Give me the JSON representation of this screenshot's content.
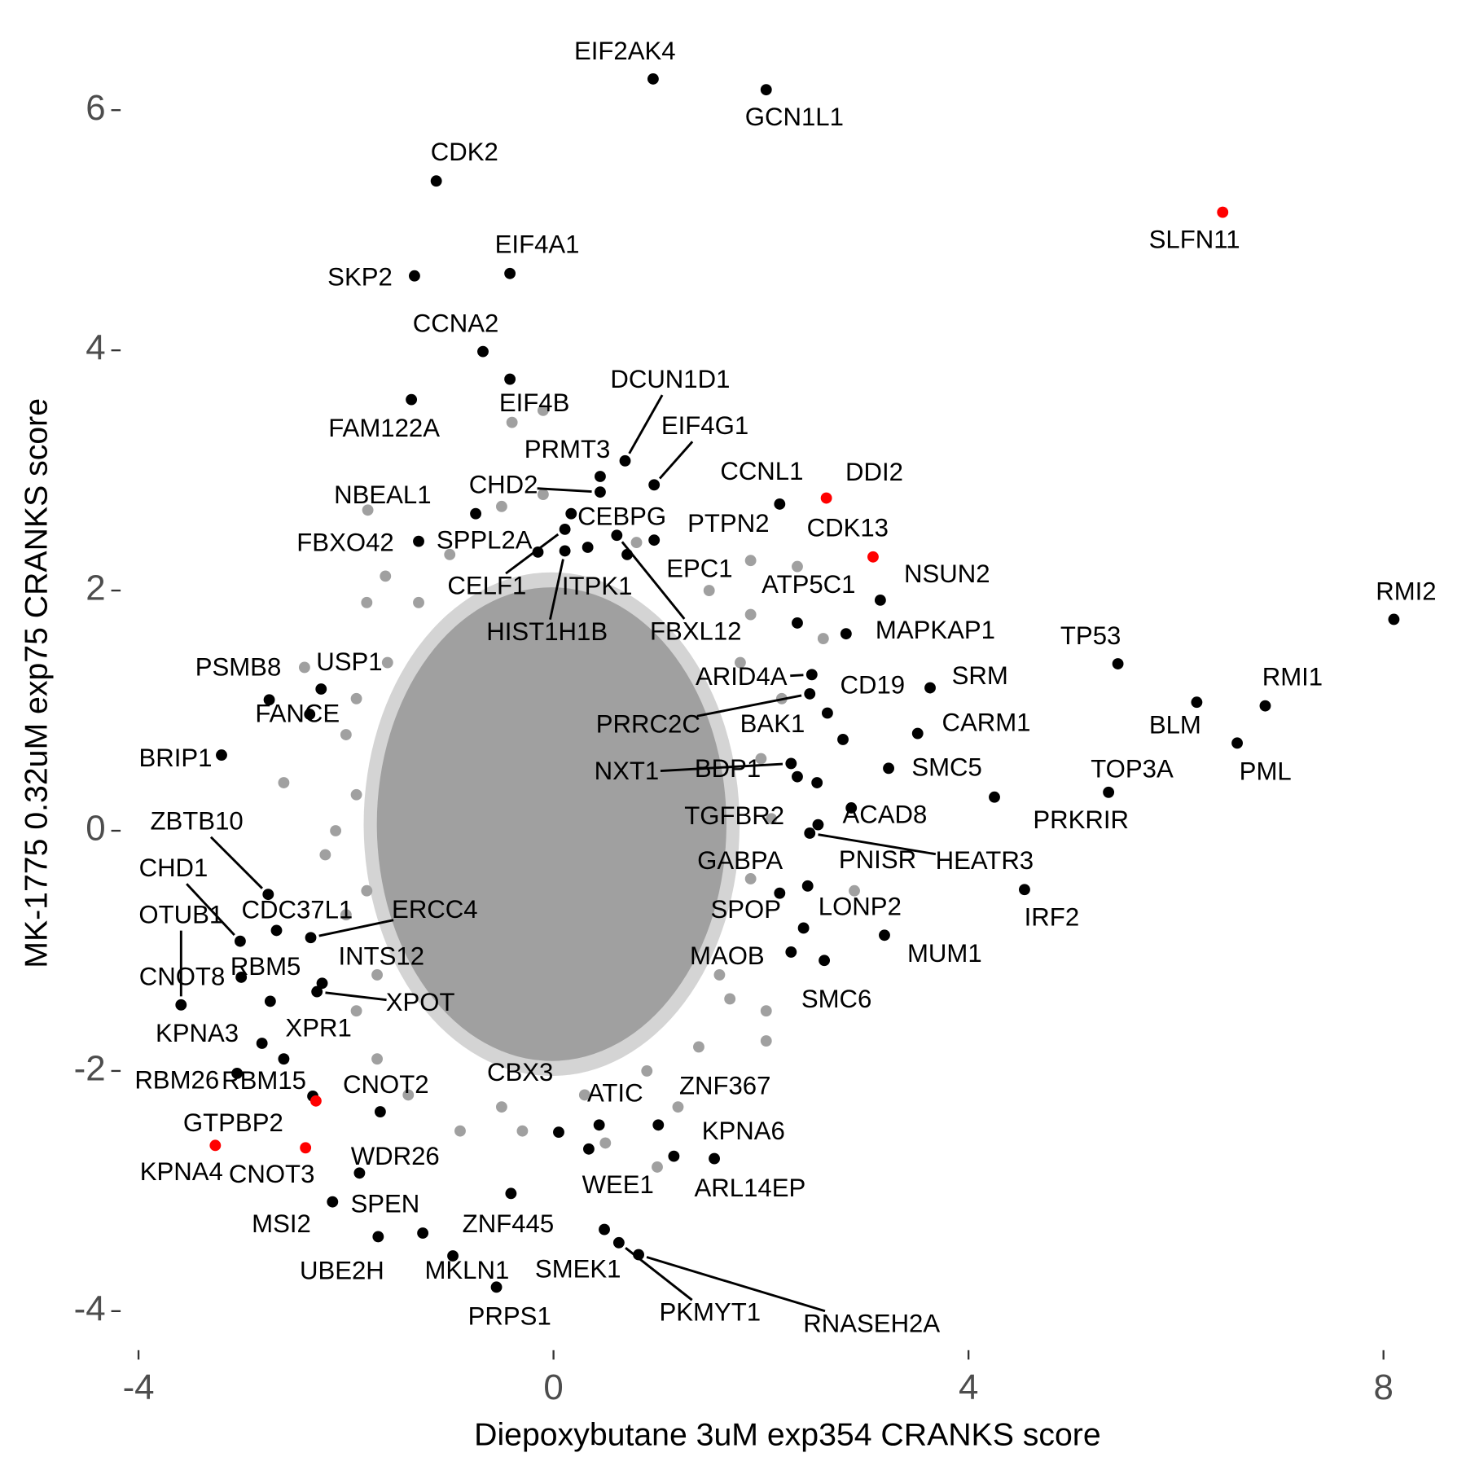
{
  "chart_data": {
    "type": "scatter",
    "x_label": "Diepoxybutane 3uM exp354 CRANKS score",
    "y_label": "MK-1775 0.32uM exp75 CRANKS score",
    "xlim": [
      -4.1,
      8.3
    ],
    "ylim": [
      -4.2,
      6.6
    ],
    "xticks": [
      -4,
      0,
      4,
      8
    ],
    "yticks": [
      -4,
      -2,
      0,
      2,
      4,
      6
    ],
    "background": {
      "color": "#a0a0a0",
      "x": [
        -1.79,
        -1.62,
        -1.8,
        -2.4,
        -1.6,
        -1.9,
        -2.0,
        -1.9,
        -2.1,
        -1.8,
        -2.0,
        -1.7,
        -1.9,
        -1.7,
        -1.4,
        -0.9,
        -0.5,
        0.3,
        0.9,
        1.2,
        1.4,
        1.7,
        2.05,
        2.05,
        1.6,
        1.9,
        2.1,
        2.0,
        2.2,
        1.8,
        1.9,
        2.35,
        1.9,
        0.8,
        -0.1,
        -0.5,
        -1.0,
        -1.3,
        2.9,
        -0.1,
        -0.4,
        1.5,
        -2.6,
        -2.2,
        2.6,
        0.5,
        -0.3,
        1.0
      ],
      "y": [
        2.67,
        2.12,
        1.9,
        1.36,
        1.4,
        1.1,
        0.8,
        0.3,
        0.0,
        -0.5,
        -0.7,
        -1.2,
        -1.5,
        -1.9,
        -2.2,
        -2.5,
        -2.3,
        -2.2,
        -2.0,
        -2.3,
        -1.8,
        -1.4,
        -1.5,
        -1.75,
        -1.2,
        -0.4,
        0.1,
        0.6,
        1.1,
        1.4,
        1.8,
        2.2,
        2.25,
        2.4,
        2.8,
        2.7,
        2.3,
        1.9,
        -0.5,
        3.5,
        3.4,
        2.0,
        0.4,
        -0.2,
        1.6,
        -2.6,
        -2.5,
        -2.8
      ]
    },
    "points": {
      "labels": [
        "EIF2AK4",
        "GCN1L1",
        "CDK2",
        "SLFN11",
        "EIF4A1",
        "SKP2",
        "CCNA2",
        "EIF4B",
        "FAM122A",
        "DCUN1D1",
        "PRMT3",
        "EIF4G1",
        "CHD2",
        "CCNL1",
        "DDI2",
        "NBEAL1",
        "CEBPG",
        "PTPN2",
        "CDK13",
        "FBXO42",
        "SPPL2A",
        "CELF1",
        "ITPK1",
        "EPC1",
        "NSUN2",
        "ATP5C1",
        "HIST1H1B",
        "FBXL12",
        "MAPKAP1",
        "RMI2",
        "TP53",
        "PSMB8",
        "USP1",
        "ARID4A",
        "CD19",
        "SRM",
        "RMI1",
        "FANCE",
        "PRRC2C",
        "BAK1",
        "CARM1",
        "BLM",
        "BRIP1",
        "NXT1",
        "BDP1",
        "SMC5",
        "TOP3A",
        "PML",
        "ZBTB10",
        "TGFBR2",
        "ACAD8",
        "PRKRIR",
        "HEATR3",
        "PNISR",
        "GABPA",
        "CHD1",
        "CDC37L1",
        "ERCC4",
        "OTUB1",
        "SPOP",
        "LONP2",
        "MUM1",
        "MAOB",
        "IRF2",
        "RBM5",
        "INTS12",
        "CNOT8",
        "SMC6",
        "XPOT",
        "XPR1",
        "KPNA3",
        "RBM26",
        "RBM15",
        "CNOT2",
        "CBX3",
        "ATIC",
        "ZNF367",
        "GTPBP2",
        "KPNA6",
        "KPNA4",
        "CNOT3",
        "WDR26",
        "WEE1",
        "ARL14EP",
        "SPEN",
        "ZNF445",
        "MSI2",
        "UBE2H",
        "MKLN1",
        "SMEK1",
        "PKMYT1",
        "RNASEH2A",
        "PRPS1"
      ],
      "x": [
        0.96,
        2.05,
        -1.13,
        6.45,
        -0.42,
        -1.34,
        -0.68,
        -0.42,
        -1.37,
        0.69,
        0.45,
        0.97,
        0.45,
        2.18,
        2.63,
        -0.75,
        0.17,
        0.97,
        3.08,
        -1.3,
        -0.15,
        0.11,
        0.33,
        0.71,
        3.15,
        2.35,
        0.11,
        0.61,
        2.82,
        8.1,
        5.44,
        -2.74,
        -2.24,
        2.49,
        2.64,
        3.63,
        6.86,
        -2.35,
        2.47,
        2.79,
        3.51,
        6.2,
        -3.2,
        2.29,
        2.35,
        3.23,
        5.35,
        6.59,
        -2.75,
        2.54,
        2.55,
        4.25,
        2.47,
        2.87,
        2.45,
        -3.02,
        -2.67,
        -2.34,
        -3.59,
        2.18,
        2.41,
        3.19,
        2.29,
        4.54,
        -2.73,
        -2.23,
        -3.01,
        2.61,
        -2.28,
        -2.6,
        -2.81,
        -3.05,
        -2.32,
        -1.67,
        0.05,
        0.44,
        1.01,
        -2.29,
        1.16,
        -3.26,
        -2.39,
        -1.87,
        0.34,
        1.55,
        -2.13,
        -0.41,
        -1.69,
        -1.26,
        -0.97,
        0.49,
        0.63,
        0.82,
        -0.55
      ],
      "y": [
        6.26,
        6.17,
        5.41,
        5.15,
        4.64,
        4.62,
        3.99,
        3.76,
        3.59,
        3.08,
        2.95,
        2.88,
        2.82,
        2.72,
        2.77,
        2.64,
        2.64,
        2.42,
        2.28,
        2.41,
        2.32,
        2.51,
        2.36,
        2.3,
        1.92,
        1.73,
        2.33,
        2.46,
        1.64,
        1.76,
        1.39,
        1.09,
        1.18,
        1.3,
        0.98,
        1.19,
        1.04,
        0.97,
        1.14,
        0.76,
        0.81,
        1.07,
        0.63,
        0.56,
        0.45,
        0.52,
        0.32,
        0.73,
        -0.53,
        0.4,
        0.05,
        0.28,
        -0.02,
        0.19,
        -0.46,
        -0.92,
        -0.83,
        -0.89,
        -1.45,
        -0.52,
        -0.81,
        -0.87,
        -1.01,
        -0.49,
        -1.42,
        -1.27,
        -1.22,
        -1.08,
        -1.34,
        -1.9,
        -1.77,
        -2.02,
        -2.21,
        -2.34,
        -2.51,
        -2.45,
        -2.45,
        -2.25,
        -2.71,
        -2.62,
        -2.64,
        -2.85,
        -2.65,
        -2.73,
        -3.09,
        -3.02,
        -3.38,
        -3.35,
        -3.54,
        -3.32,
        -3.43,
        -3.53,
        -3.8
      ],
      "colors": [
        "#000000",
        "#000000",
        "#000000",
        "#ff0000",
        "#000000",
        "#000000",
        "#000000",
        "#000000",
        "#000000",
        "#000000",
        "#000000",
        "#000000",
        "#000000",
        "#000000",
        "#ff0000",
        "#000000",
        "#000000",
        "#000000",
        "#ff0000",
        "#000000",
        "#000000",
        "#000000",
        "#000000",
        "#000000",
        "#000000",
        "#000000",
        "#000000",
        "#000000",
        "#000000",
        "#000000",
        "#000000",
        "#000000",
        "#000000",
        "#000000",
        "#000000",
        "#000000",
        "#000000",
        "#000000",
        "#000000",
        "#000000",
        "#000000",
        "#000000",
        "#000000",
        "#000000",
        "#000000",
        "#000000",
        "#000000",
        "#000000",
        "#000000",
        "#000000",
        "#000000",
        "#000000",
        "#000000",
        "#000000",
        "#000000",
        "#000000",
        "#000000",
        "#000000",
        "#000000",
        "#000000",
        "#000000",
        "#000000",
        "#000000",
        "#000000",
        "#000000",
        "#000000",
        "#000000",
        "#000000",
        "#000000",
        "#000000",
        "#000000",
        "#000000",
        "#000000",
        "#000000",
        "#000000",
        "#000000",
        "#000000",
        "#ff0000",
        "#000000",
        "#ff0000",
        "#ff0000",
        "#000000",
        "#000000",
        "#000000",
        "#000000",
        "#000000",
        "#000000",
        "#000000",
        "#000000",
        "#000000",
        "#000000",
        "#000000",
        "#000000"
      ]
    }
  }
}
